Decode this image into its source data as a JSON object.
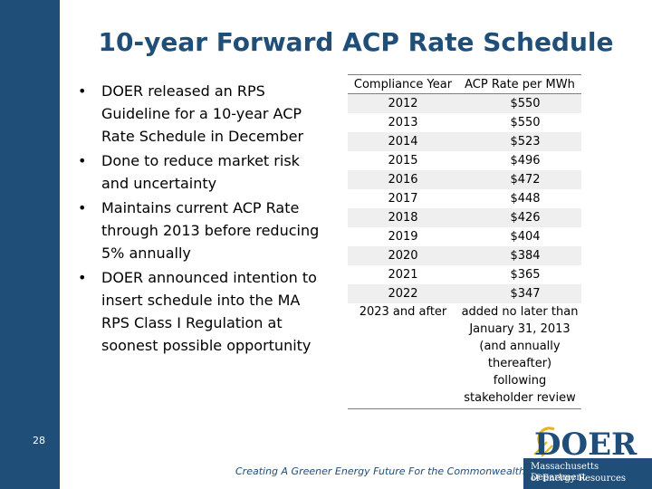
{
  "slide": {
    "title": "10-year Forward ACP Rate Schedule",
    "slide_number": "28",
    "bullets": [
      "DOER released an RPS Guideline for a 10-year ACP Rate Schedule in December",
      "Done to reduce market risk and uncertainty",
      "Maintains current ACP Rate through 2013 before reducing 5% annually",
      "DOER announced intention to insert schedule into the MA RPS Class I Regulation at soonest possible opportunity"
    ],
    "bullet_glyph": "•"
  },
  "table": {
    "header": {
      "year": "Compliance Year",
      "rate": "ACP Rate per MWh"
    },
    "rows": [
      {
        "year": "2012",
        "rate": "$550"
      },
      {
        "year": "2013",
        "rate": "$550"
      },
      {
        "year": "2014",
        "rate": "$523"
      },
      {
        "year": "2015",
        "rate": "$496"
      },
      {
        "year": "2016",
        "rate": "$472"
      },
      {
        "year": "2017",
        "rate": "$448"
      },
      {
        "year": "2018",
        "rate": "$426"
      },
      {
        "year": "2019",
        "rate": "$404"
      },
      {
        "year": "2020",
        "rate": "$384"
      },
      {
        "year": "2021",
        "rate": "$365"
      },
      {
        "year": "2022",
        "rate": "$347"
      },
      {
        "year": "2023 and after",
        "rate": "added no later than January 31, 2013 (and annually thereafter) following stakeholder review"
      }
    ]
  },
  "footer": {
    "text": "Creating A Greener Energy Future For the Commonwealth"
  },
  "logo": {
    "wordmark": "DOER",
    "line1": "Massachusetts Department",
    "line2": "of Energy Resources",
    "colors": {
      "brand": "#1f4e79",
      "accent": "#e8b21c"
    }
  }
}
